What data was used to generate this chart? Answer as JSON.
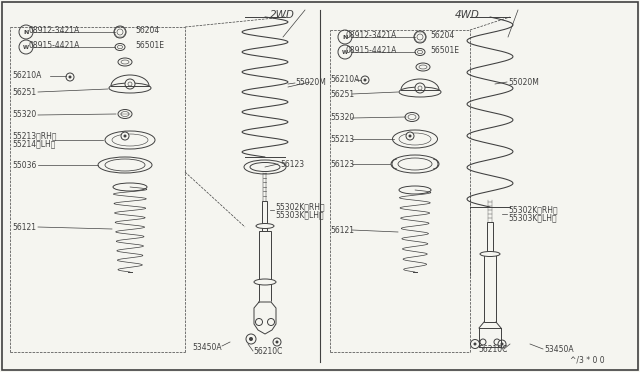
{
  "background_color": "#f5f5f0",
  "line_color": "#404040",
  "section_2wd": "2WD",
  "section_4wd": "4WD",
  "watermark": "^/3 * 0 0",
  "font_size_label": 5.5,
  "font_size_section": 7.5,
  "lw_main": 0.7,
  "lw_thin": 0.5
}
